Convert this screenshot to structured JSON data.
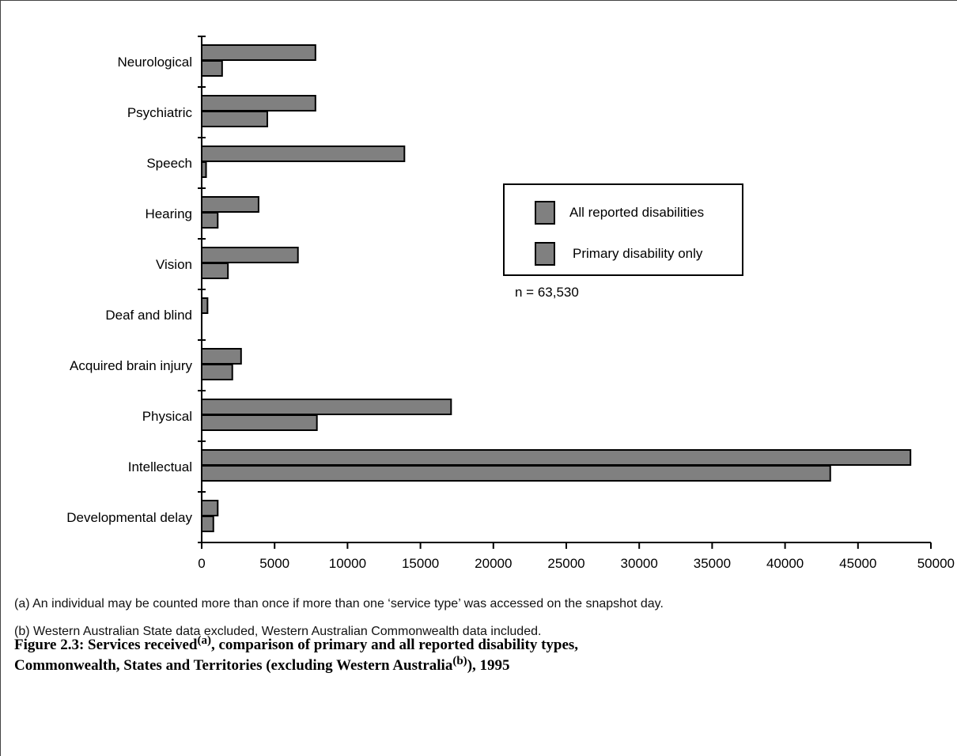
{
  "chart_data": {
    "type": "bar",
    "orientation": "horizontal",
    "categories": [
      "Neurological",
      "Psychiatric",
      "Speech",
      "Hearing",
      "Vision",
      "Deaf and blind",
      "Acquired brain injury",
      "Physical",
      "Intellectual",
      "Developmental delay"
    ],
    "series": [
      {
        "name": "All reported disabilities",
        "values": [
          7800,
          7800,
          13900,
          3900,
          6600,
          400,
          2700,
          17100,
          48600,
          1100
        ]
      },
      {
        "name": "Primary disability only",
        "values": [
          1400,
          4500,
          300,
          1100,
          1800,
          0,
          2100,
          7900,
          43100,
          800
        ]
      }
    ],
    "xlim": [
      0,
      50000
    ],
    "xticks": [
      "0",
      "5000",
      "10000",
      "15000",
      "20000",
      "25000",
      "30000",
      "35000",
      "40000",
      "45000",
      "50000"
    ],
    "bar_color": "#808080",
    "legend_position": "center-right",
    "annotation": "n = 63,530",
    "grid": false
  },
  "footnotes": {
    "a": "(a) An individual may be counted more than once if more than one ‘service type’ was accessed on the snapshot day.",
    "b": "(b) Western Australian State data excluded, Western Australian Commonwealth data included."
  },
  "caption": {
    "part1": "Figure 2.3: Services received",
    "sup_a": "(a)",
    "part2": ", comparison of primary and all reported disability types,",
    "part3": "Commonwealth, States and Territories (excluding Western Australia",
    "sup_b": "(b)",
    "part4": "), 1995"
  }
}
